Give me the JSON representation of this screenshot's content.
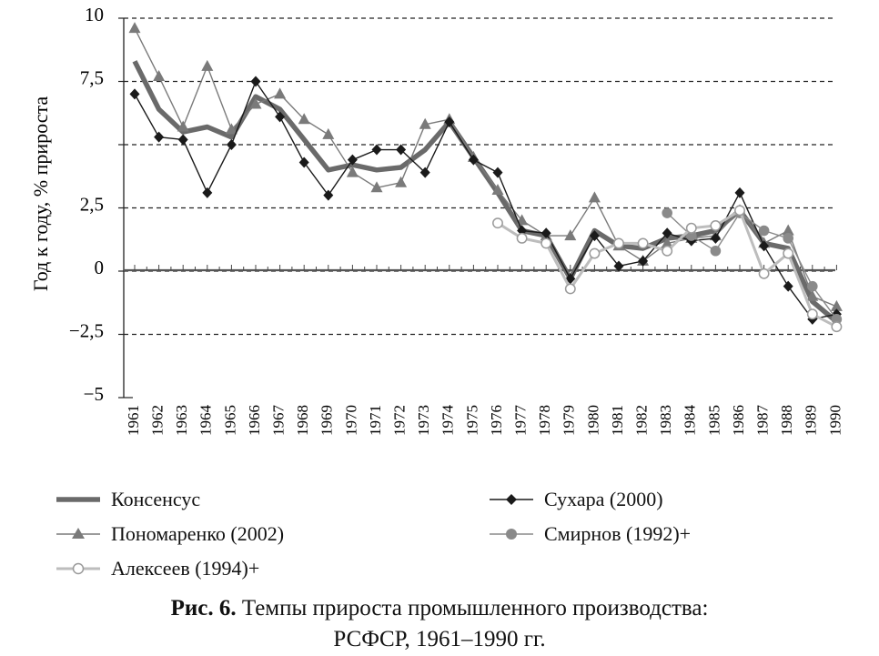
{
  "chart_data": {
    "type": "line",
    "title": "",
    "xlabel": "",
    "ylabel": "Год к году, % прироста",
    "ylim": [
      -5,
      10
    ],
    "yticks": [
      10,
      7.5,
      5,
      2.5,
      0,
      -2.5,
      -5
    ],
    "ytick_labels": [
      "10",
      "7,5",
      "",
      "2,5",
      "0",
      "−2,5",
      "−5"
    ],
    "grid": "dashed horizontal",
    "legend_position": "bottom",
    "categories": [
      "1961",
      "1962",
      "1963",
      "1964",
      "1965",
      "1966",
      "1967",
      "1968",
      "1969",
      "1970",
      "1971",
      "1972",
      "1973",
      "1974",
      "1975",
      "1976",
      "1977",
      "1978",
      "1979",
      "1980",
      "1981",
      "1982",
      "1983",
      "1984",
      "1985",
      "1986",
      "1987",
      "1988",
      "1989",
      "1990"
    ],
    "series": [
      {
        "name": "Консенсус",
        "style": "thick",
        "color": "#6a6a6a",
        "marker": "none",
        "x": [
          "1961",
          "1962",
          "1963",
          "1964",
          "1965",
          "1966",
          "1967",
          "1968",
          "1969",
          "1970",
          "1971",
          "1972",
          "1973",
          "1974",
          "1975",
          "1976",
          "1977",
          "1978",
          "1979",
          "1980",
          "1981",
          "1982",
          "1983",
          "1984",
          "1985",
          "1986",
          "1987",
          "1988",
          "1989",
          "1990"
        ],
        "values": [
          8.3,
          6.4,
          5.5,
          5.7,
          5.3,
          6.9,
          6.4,
          5.2,
          4.0,
          4.2,
          4.0,
          4.1,
          4.8,
          5.9,
          4.5,
          3.1,
          1.6,
          1.4,
          -0.3,
          1.6,
          1.0,
          0.9,
          1.3,
          1.4,
          1.6,
          2.4,
          1.1,
          0.9,
          -1.2,
          -2.0
        ]
      },
      {
        "name": "Сухара (2000)",
        "style": "thin",
        "color": "#1a1a1a",
        "marker": "diamond",
        "x": [
          "1961",
          "1962",
          "1963",
          "1964",
          "1965",
          "1966",
          "1967",
          "1968",
          "1969",
          "1970",
          "1971",
          "1972",
          "1973",
          "1974",
          "1975",
          "1976",
          "1977",
          "1978",
          "1979",
          "1980",
          "1981",
          "1982",
          "1983",
          "1984",
          "1985",
          "1986",
          "1987",
          "1988",
          "1989",
          "1990"
        ],
        "values": [
          7.0,
          5.3,
          5.2,
          3.1,
          5.0,
          7.5,
          6.1,
          4.3,
          3.0,
          4.4,
          4.8,
          4.8,
          3.9,
          5.9,
          4.4,
          3.9,
          1.6,
          1.5,
          -0.3,
          1.4,
          0.2,
          0.4,
          1.5,
          1.2,
          1.3,
          3.1,
          1.0,
          -0.6,
          -1.9,
          -1.7
        ]
      },
      {
        "name": "Пономаренко (2002)",
        "style": "thin",
        "color": "#7a7a7a",
        "marker": "triangle",
        "x": [
          "1961",
          "1962",
          "1963",
          "1964",
          "1965",
          "1966",
          "1967",
          "1968",
          "1969",
          "1970",
          "1971",
          "1972",
          "1973",
          "1974",
          "1975",
          "1976",
          "1977",
          "1978",
          "1979",
          "1980",
          "1981",
          "1982",
          "1983",
          "1984",
          "1985",
          "1986",
          "1987",
          "1988",
          "1989",
          "1990"
        ],
        "values": [
          9.6,
          7.7,
          5.7,
          8.1,
          5.6,
          6.6,
          7.0,
          6.0,
          5.4,
          3.9,
          3.3,
          3.5,
          5.8,
          6.0,
          4.5,
          3.2,
          2.0,
          1.4,
          1.4,
          2.9,
          1.0,
          0.4,
          1.1,
          1.3,
          1.4,
          2.4,
          1.1,
          1.6,
          -1.0,
          -1.4
        ]
      },
      {
        "name": "Смирнов (1992)+",
        "style": "thin",
        "color": "#8a8a8a",
        "marker": "circle-filled",
        "x": [
          "1983",
          "1984",
          "1985",
          "1986",
          "1987",
          "1988",
          "1989",
          "1990"
        ],
        "values": [
          2.3,
          1.4,
          0.8,
          2.3,
          1.6,
          1.3,
          -0.6,
          -1.9
        ]
      },
      {
        "name": "Алексеев (1994)+",
        "style": "thin",
        "color": "#bdbdbd",
        "marker": "circle-open",
        "x": [
          "1976",
          "1977",
          "1978",
          "1979",
          "1980",
          "1981",
          "1982",
          "1983",
          "1984",
          "1985",
          "1986",
          "1987",
          "1988",
          "1989",
          "1990"
        ],
        "values": [
          1.9,
          1.3,
          1.1,
          -0.7,
          0.7,
          1.1,
          1.1,
          0.8,
          1.7,
          1.8,
          2.4,
          -0.1,
          0.7,
          -1.7,
          -2.2
        ]
      }
    ]
  },
  "legend": {
    "items": [
      {
        "label": "Консенсус"
      },
      {
        "label": "Сухара (2000)"
      },
      {
        "label": "Пономаренко (2002)"
      },
      {
        "label": "Смирнов (1992)+"
      },
      {
        "label": "Алексеев (1994)+"
      }
    ]
  },
  "caption": {
    "label": "Рис. 6.",
    "line1": "Темпы прироста промышленного производства:",
    "line2": "РСФСР, 1961–1990 гг."
  }
}
